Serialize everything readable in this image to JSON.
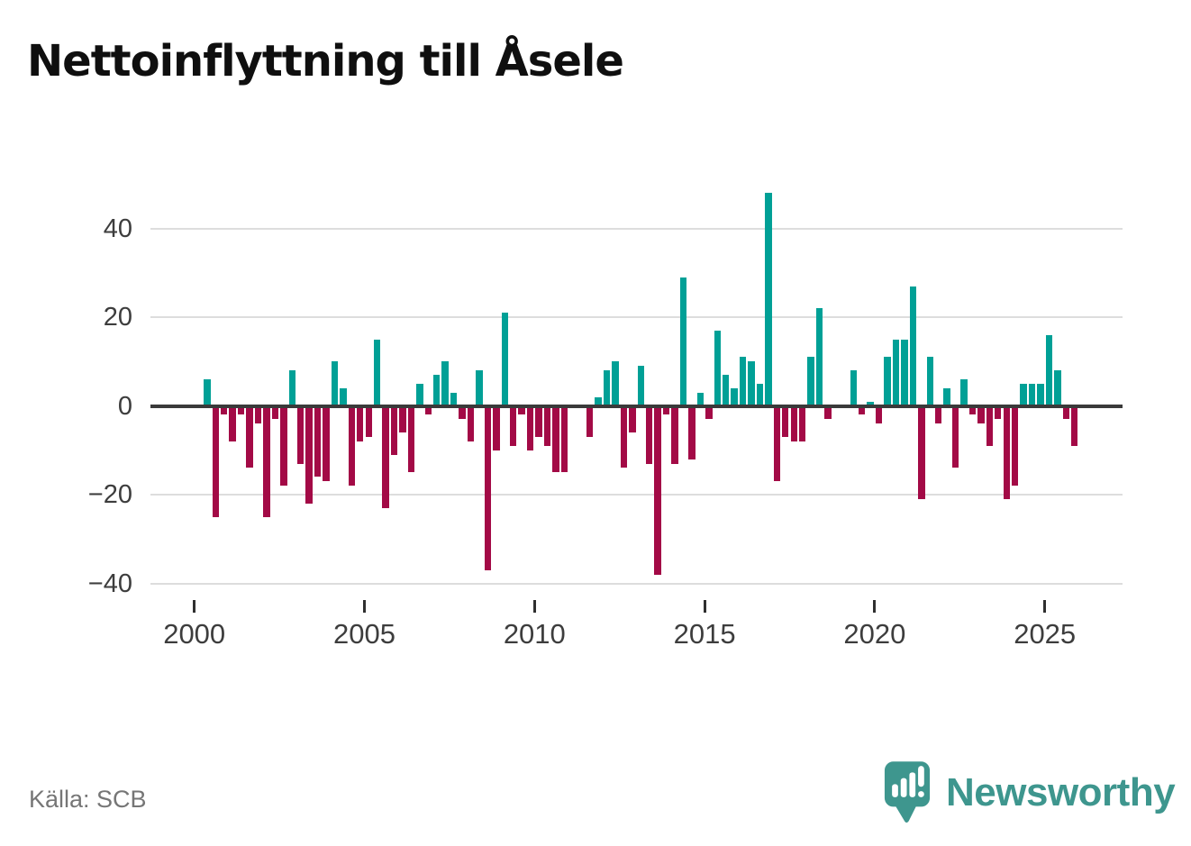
{
  "title": "Nettoinflyttning till Åsele",
  "source": {
    "label": "Källa: SCB"
  },
  "branding": {
    "name": "Newsworthy",
    "logo_icon": "newsworthy-speech-bubble-barchart-icon"
  },
  "colors": {
    "positive_bar": "#00a096",
    "negative_bar": "#a30a46",
    "zero_line": "#3a3a3a",
    "gridline": "#dddddd",
    "axis_text": "#3d3d3d",
    "title_text": "#0f0f0f",
    "source_text": "#767676",
    "brand_teal": "#3e968e"
  },
  "chart_data": {
    "type": "bar",
    "title": "Nettoinflyttning till Åsele",
    "xlabel": "",
    "ylabel": "",
    "x_unit": "quarter",
    "frequency": "quarterly",
    "grid": "horizontal",
    "legend": "none",
    "ylim": [
      -45,
      52
    ],
    "yticks": [
      40,
      20,
      0,
      -20,
      -40
    ],
    "ytick_labels": [
      "40",
      "20",
      "0",
      "−20",
      "−40"
    ],
    "xticks": [
      2000,
      2005,
      2010,
      2015,
      2020,
      2025
    ],
    "xtick_labels": [
      "2000",
      "2005",
      "2010",
      "2015",
      "2020",
      "2025"
    ],
    "series": [
      {
        "name": "Nettoinflyttning",
        "points": [
          [
            "2000Q2",
            6
          ],
          [
            "2000Q3",
            -25
          ],
          [
            "2000Q4",
            -2
          ],
          [
            "2001Q1",
            -8
          ],
          [
            "2001Q2",
            -2
          ],
          [
            "2001Q3",
            -14
          ],
          [
            "2001Q4",
            -4
          ],
          [
            "2002Q1",
            -25
          ],
          [
            "2002Q2",
            -3
          ],
          [
            "2002Q3",
            -18
          ],
          [
            "2002Q4",
            8
          ],
          [
            "2003Q1",
            -13
          ],
          [
            "2003Q2",
            -22
          ],
          [
            "2003Q3",
            -16
          ],
          [
            "2003Q4",
            -17
          ],
          [
            "2004Q1",
            10
          ],
          [
            "2004Q2",
            4
          ],
          [
            "2004Q3",
            -18
          ],
          [
            "2004Q4",
            -8
          ],
          [
            "2005Q1",
            -7
          ],
          [
            "2005Q2",
            15
          ],
          [
            "2005Q3",
            -23
          ],
          [
            "2005Q4",
            -11
          ],
          [
            "2006Q1",
            -6
          ],
          [
            "2006Q2",
            -15
          ],
          [
            "2006Q3",
            5
          ],
          [
            "2006Q4",
            -2
          ],
          [
            "2007Q1",
            7
          ],
          [
            "2007Q2",
            10
          ],
          [
            "2007Q3",
            3
          ],
          [
            "2007Q4",
            -3
          ],
          [
            "2008Q1",
            -8
          ],
          [
            "2008Q2",
            8
          ],
          [
            "2008Q3",
            -37
          ],
          [
            "2008Q4",
            -10
          ],
          [
            "2009Q1",
            21
          ],
          [
            "2009Q2",
            -9
          ],
          [
            "2009Q3",
            -2
          ],
          [
            "2009Q4",
            -10
          ],
          [
            "2010Q1",
            -7
          ],
          [
            "2010Q2",
            -9
          ],
          [
            "2010Q3",
            -15
          ],
          [
            "2010Q4",
            -15
          ],
          [
            "2011Q1",
            0
          ],
          [
            "2011Q2",
            0
          ],
          [
            "2011Q3",
            -7
          ],
          [
            "2011Q4",
            2
          ],
          [
            "2012Q1",
            8
          ],
          [
            "2012Q2",
            10
          ],
          [
            "2012Q3",
            -14
          ],
          [
            "2012Q4",
            -6
          ],
          [
            "2013Q1",
            9
          ],
          [
            "2013Q2",
            -13
          ],
          [
            "2013Q3",
            -38
          ],
          [
            "2013Q4",
            -2
          ],
          [
            "2014Q1",
            -13
          ],
          [
            "2014Q2",
            29
          ],
          [
            "2014Q3",
            -12
          ],
          [
            "2014Q4",
            3
          ],
          [
            "2015Q1",
            -3
          ],
          [
            "2015Q2",
            17
          ],
          [
            "2015Q3",
            7
          ],
          [
            "2015Q4",
            4
          ],
          [
            "2016Q1",
            11
          ],
          [
            "2016Q2",
            10
          ],
          [
            "2016Q3",
            5
          ],
          [
            "2016Q4",
            48
          ],
          [
            "2017Q1",
            -17
          ],
          [
            "2017Q2",
            -7
          ],
          [
            "2017Q3",
            -8
          ],
          [
            "2017Q4",
            -8
          ],
          [
            "2018Q1",
            11
          ],
          [
            "2018Q2",
            22
          ],
          [
            "2018Q3",
            -3
          ],
          [
            "2018Q4",
            0
          ],
          [
            "2019Q1",
            0
          ],
          [
            "2019Q2",
            8
          ],
          [
            "2019Q3",
            -2
          ],
          [
            "2019Q4",
            1
          ],
          [
            "2020Q1",
            -4
          ],
          [
            "2020Q2",
            11
          ],
          [
            "2020Q3",
            15
          ],
          [
            "2020Q4",
            15
          ],
          [
            "2021Q1",
            27
          ],
          [
            "2021Q2",
            -21
          ],
          [
            "2021Q3",
            11
          ],
          [
            "2021Q4",
            -4
          ],
          [
            "2022Q1",
            4
          ],
          [
            "2022Q2",
            -14
          ],
          [
            "2022Q3",
            6
          ],
          [
            "2022Q4",
            -2
          ],
          [
            "2023Q1",
            -4
          ],
          [
            "2023Q2",
            -9
          ],
          [
            "2023Q3",
            -3
          ],
          [
            "2023Q4",
            -21
          ],
          [
            "2024Q1",
            -18
          ],
          [
            "2024Q2",
            5
          ],
          [
            "2024Q3",
            5
          ],
          [
            "2024Q4",
            5
          ],
          [
            "2025Q1",
            16
          ],
          [
            "2025Q2",
            8
          ],
          [
            "2025Q3",
            -3
          ],
          [
            "2025Q4",
            -9
          ]
        ]
      }
    ]
  }
}
